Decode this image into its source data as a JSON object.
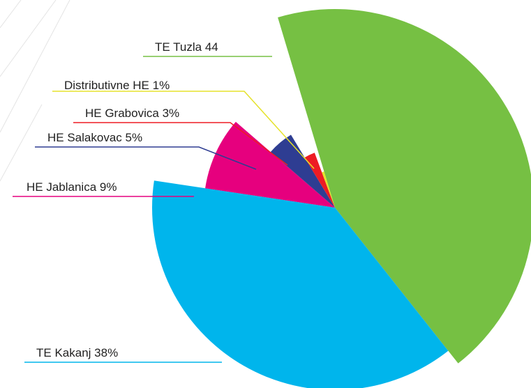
{
  "chart_data": {
    "type": "pie",
    "categories": [
      "TE Tuzla",
      "TE Kakanj",
      "HE Jablanica",
      "HE Salakovac",
      "HE Grabovica",
      "Distributivne HE"
    ],
    "values": [
      44,
      38,
      9,
      5,
      3,
      1
    ],
    "value_labels": [
      "44",
      "38%",
      "9%",
      "5%",
      "3%",
      "1%"
    ],
    "colors": [
      "#76c043",
      "#00b5ec",
      "#e6007e",
      "#2e3d92",
      "#ed1c24",
      "#e5e22b"
    ]
  }
}
